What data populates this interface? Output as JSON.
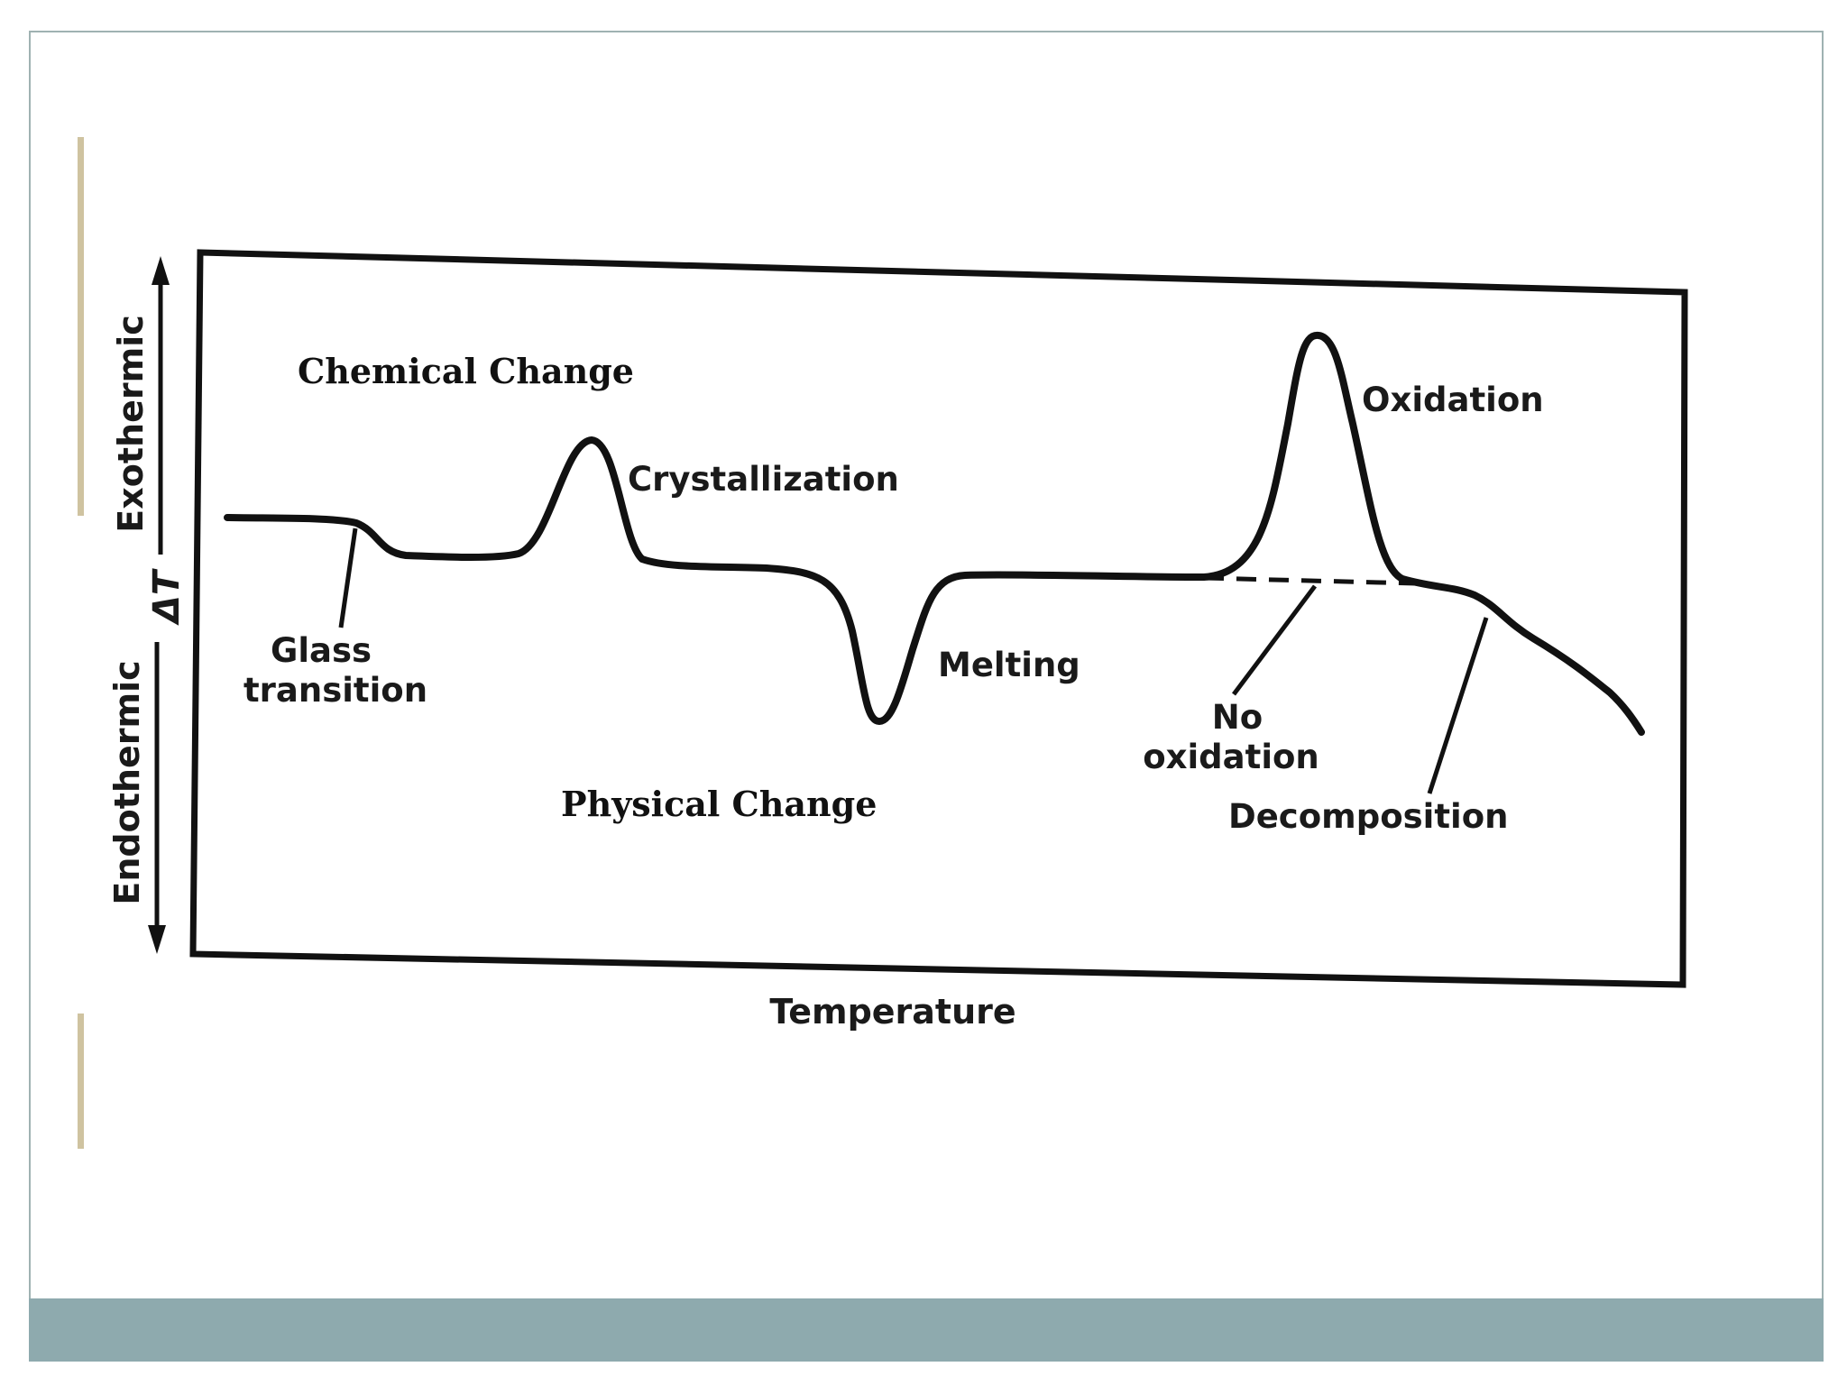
{
  "diagram": {
    "region_labels": {
      "upper": "Chemical Change",
      "lower": "Physical Change"
    },
    "axis": {
      "x_label": "Temperature",
      "y_label": "ΔT",
      "y_top": "Exothermic",
      "y_bottom": "Endothermic"
    },
    "events": {
      "glass_transition_line1": "Glass",
      "glass_transition_line2": "transition",
      "crystallization": "Crystallization",
      "melting": "Melting",
      "oxidation": "Oxidation",
      "no_oxidation_line1": "No",
      "no_oxidation_line2": "oxidation",
      "decomposition": "Decomposition"
    }
  },
  "colors": {
    "slide_border": "#9fb2b2",
    "accent": "#cfc3a0",
    "footer": "#8eaaae",
    "ink": "#111111"
  }
}
